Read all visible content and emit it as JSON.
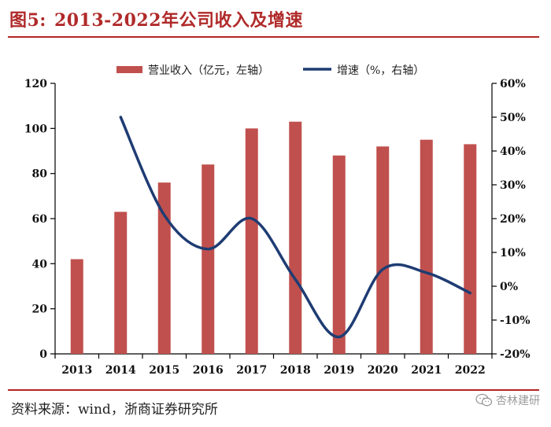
{
  "figure": {
    "title_prefix": "图5:",
    "title": "2013-2022年公司收入及增速",
    "source": "资料来源：wind，浙商证券研究所",
    "watermark": "杏林建研"
  },
  "colors": {
    "bar": "#c0504d",
    "line": "#1f3c73",
    "title": "#b02a2a",
    "rule": "#b42424",
    "axis": "#000000"
  },
  "chart_data": {
    "type": "bar+line",
    "categories": [
      "2013",
      "2014",
      "2015",
      "2016",
      "2017",
      "2018",
      "2019",
      "2020",
      "2021",
      "2022"
    ],
    "series": [
      {
        "name": "营业收入（亿元，左轴）",
        "type": "bar",
        "axis": "left",
        "values": [
          42,
          63,
          76,
          84,
          100,
          103,
          88,
          92,
          95,
          93
        ]
      },
      {
        "name": "增速（%，右轴）",
        "type": "line",
        "axis": "right",
        "values": [
          null,
          50,
          21,
          11,
          20,
          2,
          -15,
          5,
          4,
          -2
        ]
      }
    ],
    "left_axis": {
      "min": 0,
      "max": 120,
      "ticks": [
        0,
        20,
        40,
        60,
        80,
        100,
        120
      ],
      "tick_labels": [
        "0",
        "20",
        "40",
        "60",
        "80",
        "100",
        "120"
      ]
    },
    "right_axis": {
      "min": -20,
      "max": 60,
      "ticks": [
        -20,
        -10,
        0,
        10,
        20,
        30,
        40,
        50,
        60
      ],
      "tick_labels": [
        "-20%",
        "-10%",
        "0%",
        "10%",
        "20%",
        "30%",
        "40%",
        "50%",
        "60%"
      ]
    },
    "legend": {
      "position": "top-center",
      "bar_label": "营业收入（亿元，左轴）",
      "line_label": "增速（%，右轴）"
    },
    "grid": false
  }
}
